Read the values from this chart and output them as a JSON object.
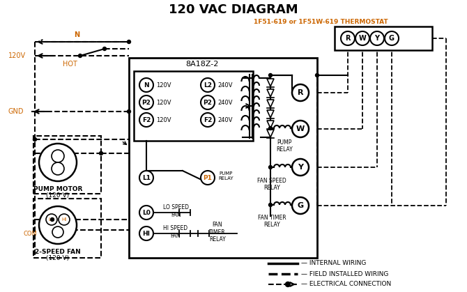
{
  "title": "120 VAC DIAGRAM",
  "bg_color": "#ffffff",
  "black": "#000000",
  "orange": "#cc6600",
  "thermostat_label": "1F51-619 or 1F51W-619 THERMOSTAT",
  "box_label": "8A18Z-2",
  "figw": 6.7,
  "figh": 4.19,
  "dpi": 100,
  "left_term_labels": [
    "N",
    "P2",
    "F2"
  ],
  "left_volt_labels": [
    "120V",
    "120V",
    "120V"
  ],
  "right_term_labels": [
    "L2",
    "P2",
    "F2"
  ],
  "right_volt_labels": [
    "240V",
    "240V",
    "240V"
  ],
  "relay_circle_labels": [
    "R",
    "W",
    "Y",
    "G"
  ],
  "therm_circle_labels": [
    "R",
    "W",
    "Y",
    "G"
  ],
  "bottom_circle_labels": [
    "L1",
    "P1",
    "L0",
    "HI"
  ],
  "pump_motor_line1": "PUMP MOTOR",
  "pump_motor_line2": "(120 V)",
  "fan_line1": "2-SPEED FAN",
  "fan_line2": "(120 V)",
  "legend_line1": "INTERNAL WIRING",
  "legend_line2": "FIELD INSTALLED WIRING",
  "legend_line3": "ELECTRICAL CONNECTION"
}
